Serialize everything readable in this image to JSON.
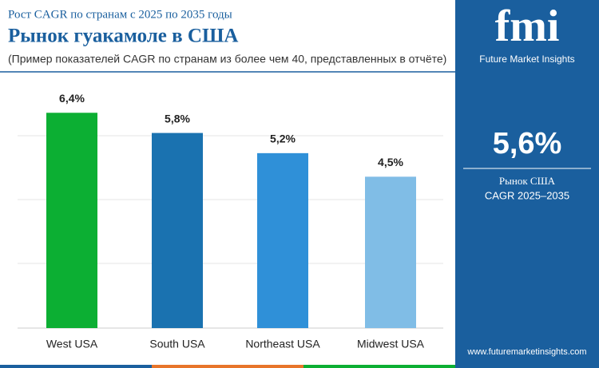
{
  "chart_data": {
    "type": "bar",
    "subtitle": "Рост CAGR по странам с 2025 по 2035 годы",
    "title": "Рынок гуакамоле в США",
    "note": "(Пример показателей CAGR по странам из более чем 40, представленных в отчёте)",
    "categories": [
      "West USA",
      "South USA",
      "Northeast USA",
      "Midwest USA"
    ],
    "values": [
      6.4,
      5.8,
      5.2,
      4.5
    ],
    "value_labels": [
      "6,4%",
      "5,8%",
      "5,2%",
      "4,5%"
    ],
    "colors": [
      "#0caf33",
      "#1a72b0",
      "#2f90d8",
      "#80bde6"
    ],
    "ylim": [
      0,
      7
    ]
  },
  "panel": {
    "brand": "fmi",
    "brand_name": "Future Market Insights",
    "stat": "5,6%",
    "stat_line1": "Рынок США",
    "stat_line2": "CAGR 2025–2035",
    "url": "www.futuremarketinsights.com"
  }
}
